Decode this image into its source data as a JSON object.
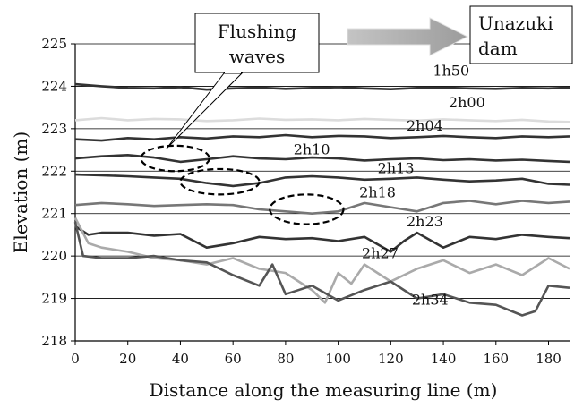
{
  "chart_data": {
    "type": "line",
    "title": "",
    "xlabel": "Distance along the measuring line (m)",
    "ylabel": "Elevation (m)",
    "xlim": [
      0,
      188
    ],
    "ylim": [
      218,
      225
    ],
    "x_ticks": [
      0,
      20,
      40,
      60,
      80,
      100,
      120,
      140,
      160,
      180
    ],
    "y_ticks": [
      218,
      219,
      220,
      221,
      222,
      223,
      224,
      225
    ],
    "grid": "horizontal",
    "series": [
      {
        "name": "1h50",
        "color": "#333333",
        "x": [
          0,
          10,
          20,
          30,
          40,
          50,
          60,
          70,
          80,
          90,
          100,
          110,
          120,
          130,
          140,
          150,
          160,
          170,
          180,
          188
        ],
        "y": [
          224.05,
          224.0,
          223.96,
          223.95,
          223.98,
          223.92,
          223.95,
          223.97,
          223.94,
          223.96,
          223.98,
          223.95,
          223.93,
          223.96,
          223.97,
          223.95,
          223.94,
          223.96,
          223.95,
          223.97
        ]
      },
      {
        "name": "2h00",
        "color": "#dcdcdc",
        "x": [
          0,
          10,
          20,
          30,
          40,
          50,
          60,
          70,
          80,
          90,
          100,
          110,
          120,
          130,
          140,
          150,
          160,
          170,
          180,
          188
        ],
        "y": [
          223.2,
          223.25,
          223.2,
          223.23,
          223.22,
          223.18,
          223.2,
          223.24,
          223.21,
          223.22,
          223.2,
          223.23,
          223.21,
          223.19,
          223.22,
          223.2,
          223.18,
          223.21,
          223.17,
          223.16
        ]
      },
      {
        "name": "2h04",
        "color": "#333333",
        "x": [
          0,
          10,
          20,
          30,
          40,
          50,
          60,
          70,
          80,
          90,
          100,
          110,
          120,
          130,
          140,
          150,
          160,
          170,
          180,
          188
        ],
        "y": [
          222.75,
          222.72,
          222.78,
          222.75,
          222.8,
          222.77,
          222.82,
          222.8,
          222.85,
          222.8,
          222.83,
          222.82,
          222.78,
          222.8,
          222.83,
          222.8,
          222.78,
          222.82,
          222.8,
          222.82
        ]
      },
      {
        "name": "2h10",
        "color": "#333333",
        "x": [
          0,
          10,
          20,
          30,
          40,
          50,
          60,
          70,
          80,
          90,
          100,
          110,
          120,
          130,
          140,
          150,
          160,
          170,
          180,
          188
        ],
        "y": [
          222.3,
          222.35,
          222.38,
          222.32,
          222.22,
          222.28,
          222.35,
          222.3,
          222.28,
          222.32,
          222.3,
          222.25,
          222.28,
          222.3,
          222.26,
          222.28,
          222.25,
          222.27,
          222.24,
          222.22
        ]
      },
      {
        "name": "2h13",
        "color": "#333333",
        "x": [
          0,
          10,
          20,
          30,
          40,
          50,
          60,
          70,
          80,
          90,
          100,
          110,
          120,
          130,
          140,
          150,
          160,
          170,
          180,
          188
        ],
        "y": [
          221.92,
          221.9,
          221.88,
          221.85,
          221.82,
          221.72,
          221.65,
          221.72,
          221.85,
          221.88,
          221.85,
          221.8,
          221.82,
          221.85,
          221.8,
          221.76,
          221.78,
          221.82,
          221.7,
          221.68
        ]
      },
      {
        "name": "2h18",
        "color": "#777777",
        "x": [
          0,
          10,
          20,
          30,
          40,
          50,
          60,
          70,
          80,
          90,
          100,
          110,
          120,
          130,
          140,
          150,
          160,
          170,
          180,
          188
        ],
        "y": [
          221.2,
          221.25,
          221.22,
          221.18,
          221.2,
          221.22,
          221.2,
          221.1,
          221.05,
          221.0,
          221.05,
          221.25,
          221.15,
          221.05,
          221.25,
          221.3,
          221.22,
          221.3,
          221.25,
          221.28
        ]
      },
      {
        "name": "2h23",
        "color": "#333333",
        "x": [
          0,
          5,
          10,
          20,
          30,
          40,
          50,
          60,
          70,
          80,
          90,
          100,
          110,
          120,
          125,
          130,
          140,
          150,
          160,
          170,
          180,
          188
        ],
        "y": [
          220.7,
          220.5,
          220.55,
          220.55,
          220.48,
          220.52,
          220.2,
          220.3,
          220.45,
          220.4,
          220.42,
          220.35,
          220.45,
          220.1,
          220.35,
          220.55,
          220.2,
          220.45,
          220.4,
          220.5,
          220.45,
          220.42
        ]
      },
      {
        "name": "2h27",
        "color": "#aaaaaa",
        "x": [
          0,
          5,
          10,
          20,
          30,
          40,
          50,
          60,
          70,
          80,
          90,
          95,
          100,
          105,
          110,
          120,
          130,
          140,
          150,
          160,
          170,
          180,
          188
        ],
        "y": [
          220.9,
          220.3,
          220.2,
          220.1,
          219.95,
          219.9,
          219.8,
          219.95,
          219.7,
          219.6,
          219.2,
          218.9,
          219.6,
          219.35,
          219.8,
          219.4,
          219.7,
          219.9,
          219.6,
          219.8,
          219.55,
          219.95,
          219.7
        ]
      },
      {
        "name": "2h34",
        "color": "#555555",
        "x": [
          0,
          3,
          10,
          20,
          30,
          40,
          50,
          60,
          70,
          75,
          80,
          90,
          100,
          110,
          120,
          130,
          140,
          150,
          160,
          170,
          175,
          180,
          188
        ],
        "y": [
          220.8,
          220.0,
          219.95,
          219.95,
          220.0,
          219.9,
          219.85,
          219.55,
          219.3,
          219.8,
          219.1,
          219.3,
          218.95,
          219.2,
          219.4,
          219.0,
          219.1,
          218.9,
          218.85,
          218.6,
          218.7,
          219.3,
          219.25
        ]
      }
    ],
    "series_labels": [
      {
        "text": "1h50",
        "x": 136,
        "y": 224.25
      },
      {
        "text": "2h00",
        "x": 142,
        "y": 223.5
      },
      {
        "text": "2h04",
        "x": 126,
        "y": 222.95
      },
      {
        "text": "2h10",
        "x": 83,
        "y": 222.4
      },
      {
        "text": "2h13",
        "x": 115,
        "y": 221.95
      },
      {
        "text": "2h18",
        "x": 108,
        "y": 221.38
      },
      {
        "text": "2h23",
        "x": 126,
        "y": 220.7
      },
      {
        "text": "2h27",
        "x": 109,
        "y": 219.95
      },
      {
        "text": "2h34",
        "x": 128,
        "y": 218.85
      }
    ],
    "annotations": {
      "callout_lines": [
        "Flushing",
        "waves"
      ],
      "arrow_target_lines": [
        "Unazuki",
        "dam"
      ],
      "dashed_ellipses": [
        {
          "cx": 38,
          "cy": 222.3,
          "rx": 13,
          "ry": 0.3
        },
        {
          "cx": 55,
          "cy": 221.75,
          "rx": 15,
          "ry": 0.3
        },
        {
          "cx": 88,
          "cy": 221.1,
          "rx": 14,
          "ry": 0.35
        }
      ]
    }
  }
}
